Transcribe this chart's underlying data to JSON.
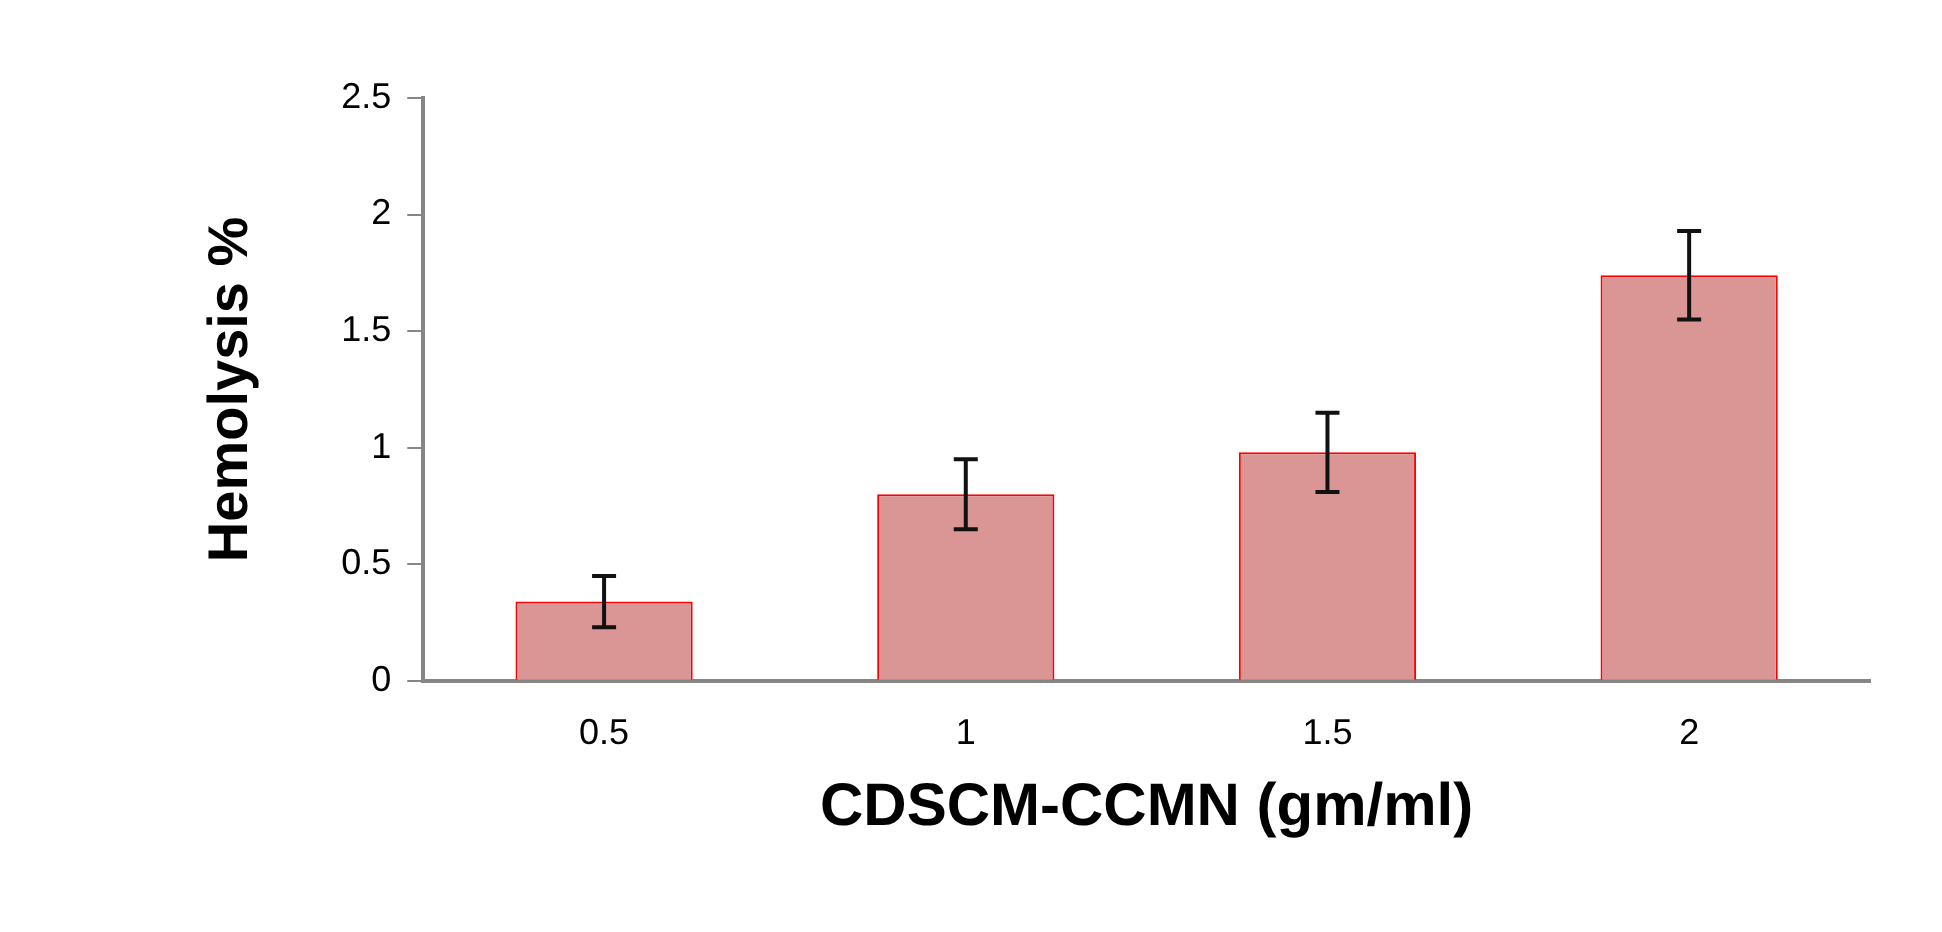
{
  "chart_data": {
    "type": "bar",
    "xlabel": "CDSCM-CCMN (gm/ml)",
    "ylabel": "Hemolysis %",
    "categories": [
      "0.5",
      "1",
      "1.5",
      "2"
    ],
    "series": [
      {
        "color": "#d99694",
        "values": [
          0.34,
          0.8,
          0.98,
          1.74
        ],
        "errors": [
          0.11,
          0.15,
          0.17,
          0.19
        ]
      }
    ],
    "ylim": [
      0,
      2.5
    ],
    "yticks": [
      0,
      0.5,
      1,
      1.5,
      2,
      2.5
    ],
    "grid": false,
    "legend": false
  }
}
